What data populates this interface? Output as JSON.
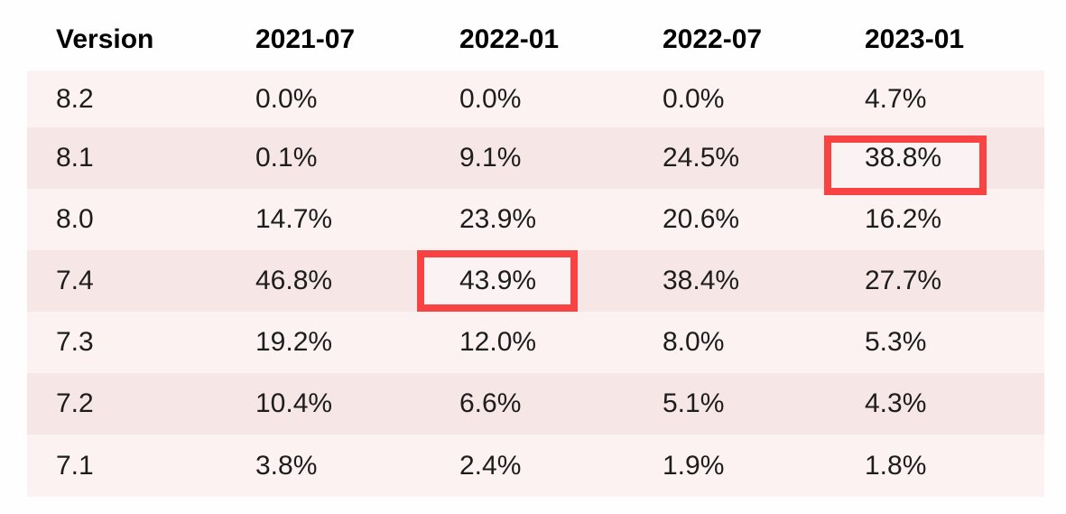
{
  "table": {
    "columns": [
      "Version",
      "2021-07",
      "2022-01",
      "2022-07",
      "2023-01"
    ],
    "rows": [
      {
        "cells": [
          "8.2",
          "0.0%",
          "0.0%",
          "0.0%",
          "4.7%"
        ]
      },
      {
        "cells": [
          "8.1",
          "0.1%",
          "9.1%",
          "24.5%",
          "38.8%"
        ]
      },
      {
        "cells": [
          "8.0",
          "14.7%",
          "23.9%",
          "20.6%",
          "16.2%"
        ]
      },
      {
        "cells": [
          "7.4",
          "46.8%",
          "43.9%",
          "38.4%",
          "27.7%"
        ]
      },
      {
        "cells": [
          "7.3",
          "19.2%",
          "12.0%",
          "8.0%",
          "5.3%"
        ]
      },
      {
        "cells": [
          "7.2",
          "10.4%",
          "6.6%",
          "5.1%",
          "4.3%"
        ]
      },
      {
        "cells": [
          "7.1",
          "3.8%",
          "2.4%",
          "1.9%",
          "1.8%"
        ]
      }
    ],
    "highlights": [
      {
        "version": "7.4",
        "column": "2022-01",
        "value": "43.9%"
      },
      {
        "version": "8.1",
        "column": "2023-01",
        "value": "38.8%"
      }
    ]
  },
  "colors": {
    "row_light": "#fdf2f2",
    "row_dark": "#f7e6e6",
    "highlight_border": "#f94342",
    "text": "#1d1d1d",
    "background": "#fffefe"
  },
  "chart_data": {
    "type": "table",
    "columns": [
      "Version",
      "2021-07",
      "2022-01",
      "2022-07",
      "2023-01"
    ],
    "rows": [
      [
        "8.2",
        "0.0%",
        "0.0%",
        "0.0%",
        "4.7%"
      ],
      [
        "8.1",
        "0.1%",
        "9.1%",
        "24.5%",
        "38.8%"
      ],
      [
        "8.0",
        "14.7%",
        "23.9%",
        "20.6%",
        "16.2%"
      ],
      [
        "7.4",
        "46.8%",
        "43.9%",
        "38.4%",
        "27.7%"
      ],
      [
        "7.3",
        "19.2%",
        "12.0%",
        "8.0%",
        "5.3%"
      ],
      [
        "7.2",
        "10.4%",
        "6.6%",
        "5.1%",
        "4.3%"
      ],
      [
        "7.1",
        "3.8%",
        "2.4%",
        "1.9%",
        "1.8%"
      ]
    ],
    "annotations": [
      {
        "row": "7.4",
        "column": "2022-01",
        "value": "43.9%",
        "style": "red-box"
      },
      {
        "row": "8.1",
        "column": "2023-01",
        "value": "38.8%",
        "style": "red-box"
      }
    ]
  }
}
